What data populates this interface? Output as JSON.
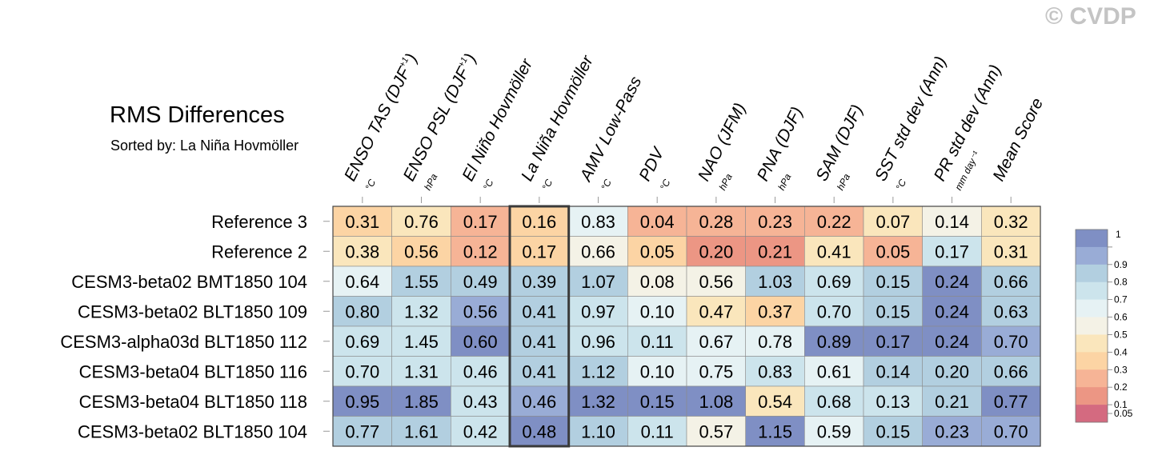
{
  "title": "RMS Differences",
  "subtitle": "Sorted by: La Niña Hovmöller",
  "watermark": "© CVDP",
  "chart_data": {
    "type": "heatmap",
    "columns": [
      {
        "label": "ENSO TAS (DJF",
        "sup": "+1",
        "close": ")",
        "unit": "°C"
      },
      {
        "label": "ENSO PSL (DJF",
        "sup": "+1",
        "close": ")",
        "unit": "hPa"
      },
      {
        "label": "El Niño Hovmöller",
        "sup": "",
        "close": "",
        "unit": "°C"
      },
      {
        "label": "La Niña Hovmöller",
        "sup": "",
        "close": "",
        "unit": "°C"
      },
      {
        "label": "AMV Low-Pass",
        "sup": "",
        "close": "",
        "unit": "°C"
      },
      {
        "label": "PDV",
        "sup": "",
        "close": "",
        "unit": "°C"
      },
      {
        "label": "NAO (JFM)",
        "sup": "",
        "close": "",
        "unit": "hPa"
      },
      {
        "label": "PNA (DJF)",
        "sup": "",
        "close": "",
        "unit": "hPa"
      },
      {
        "label": "SAM (DJF)",
        "sup": "",
        "close": "",
        "unit": "hPa"
      },
      {
        "label": "SST std dev (Ann)",
        "sup": "",
        "close": "",
        "unit": "°C"
      },
      {
        "label": "PR std dev (Ann)",
        "sup": "",
        "close": "",
        "unit": "mm day⁻¹"
      },
      {
        "label": "Mean Score",
        "sup": "",
        "close": "",
        "unit": ""
      }
    ],
    "rows": [
      "Reference 3",
      "Reference 2",
      "CESM3-beta02 BMT1850 104",
      "CESM3-beta02 BLT1850 109",
      "CESM3-alpha03d BLT1850 112",
      "CESM3-beta04 BLT1850 116",
      "CESM3-beta04 BLT1850 118",
      "CESM3-beta02 BLT1850 104"
    ],
    "values": [
      [
        "0.31",
        "0.76",
        "0.17",
        "0.16",
        "0.83",
        "0.04",
        "0.28",
        "0.23",
        "0.22",
        "0.07",
        "0.14",
        "0.32"
      ],
      [
        "0.38",
        "0.56",
        "0.12",
        "0.17",
        "0.66",
        "0.05",
        "0.20",
        "0.21",
        "0.41",
        "0.05",
        "0.17",
        "0.31"
      ],
      [
        "0.64",
        "1.55",
        "0.49",
        "0.39",
        "1.07",
        "0.08",
        "0.56",
        "1.03",
        "0.69",
        "0.15",
        "0.24",
        "0.66"
      ],
      [
        "0.80",
        "1.32",
        "0.56",
        "0.41",
        "0.97",
        "0.10",
        "0.47",
        "0.37",
        "0.70",
        "0.15",
        "0.24",
        "0.63"
      ],
      [
        "0.69",
        "1.45",
        "0.60",
        "0.41",
        "0.96",
        "0.11",
        "0.67",
        "0.78",
        "0.89",
        "0.17",
        "0.24",
        "0.70"
      ],
      [
        "0.70",
        "1.31",
        "0.46",
        "0.41",
        "1.12",
        "0.10",
        "0.75",
        "0.83",
        "0.61",
        "0.14",
        "0.20",
        "0.66"
      ],
      [
        "0.95",
        "1.85",
        "0.43",
        "0.46",
        "1.32",
        "0.15",
        "1.08",
        "0.54",
        "0.68",
        "0.13",
        "0.21",
        "0.77"
      ],
      [
        "0.77",
        "1.61",
        "0.42",
        "0.48",
        "1.10",
        "0.11",
        "0.57",
        "1.15",
        "0.59",
        "0.15",
        "0.23",
        "0.70"
      ]
    ],
    "highlighted_column": "La Niña Hovmöller",
    "colorbar": {
      "labels": [
        "1",
        "0.9",
        "0.8",
        "0.7",
        "0.6",
        "0.5",
        "0.4",
        "0.3",
        "0.2",
        "0.1",
        "0.05"
      ],
      "colors": [
        "#7f8fc4",
        "#99acd6",
        "#b2cfe0",
        "#cce4ec",
        "#e6f2f4",
        "#f4f2e6",
        "#fae6bc",
        "#fcd4a4",
        "#f6b496",
        "#ec9684",
        "#d46a80"
      ]
    }
  }
}
